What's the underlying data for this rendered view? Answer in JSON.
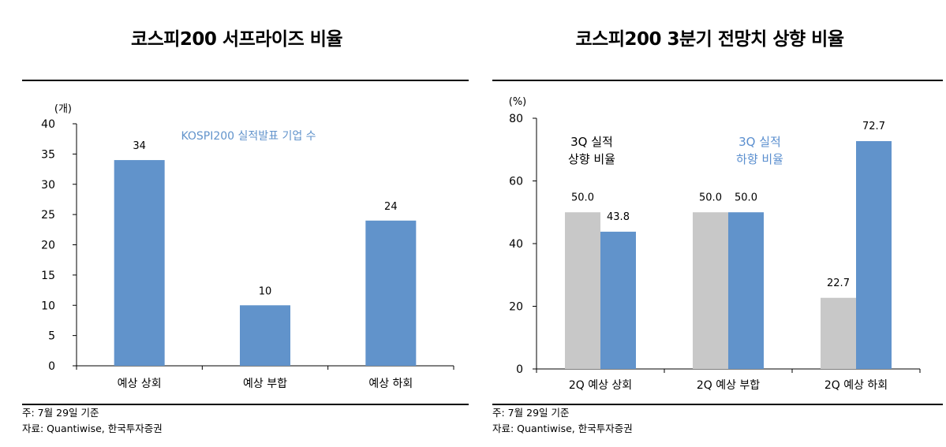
{
  "charts": [
    {
      "title": "코스피200 서프라이즈 비율",
      "footnote": "주: 7월 29일 기준",
      "source": "자료: Quantiwise, 한국투자증권",
      "chart_data": {
        "type": "bar",
        "title": "코스피200 서프라이즈 비율",
        "ylabel": "(개)",
        "xlabel": "",
        "ylim": [
          0,
          40
        ],
        "yticks": [
          0,
          5,
          10,
          15,
          20,
          25,
          30,
          35,
          40
        ],
        "categories": [
          "예상 상회",
          "예상 부합",
          "예상 하회"
        ],
        "series": [
          {
            "name": "KOSPI200 실적발표 기업 수",
            "values": [
              34,
              10,
              24
            ],
            "color": "#6193cb"
          }
        ],
        "legend_text": "KOSPI200 실적발표 기업 수",
        "legend_placement": "inside-top",
        "grid": false
      }
    },
    {
      "title": "코스피200 3분기 전망치 상향 비율",
      "footnote": "주: 7월 29일 기준",
      "source": "자료: Quantiwise, 한국투자증권",
      "chart_data": {
        "type": "bar",
        "title": "코스피200 3분기 전망치 상향 비율",
        "ylabel": "(%)",
        "xlabel": "",
        "ylim": [
          0,
          80
        ],
        "yticks": [
          0,
          20,
          40,
          60,
          80
        ],
        "categories": [
          "2Q 예상 상회",
          "2Q 예상 부합",
          "2Q 예상 하회"
        ],
        "series": [
          {
            "name": "3Q 실적 상향 비율",
            "label_lines": [
              "3Q 실적",
              "상향 비율"
            ],
            "values": [
              50.0,
              50.0,
              22.7
            ],
            "value_labels": [
              "50.0",
              "50.0",
              "22.7"
            ],
            "color": "#c8c8c8",
            "label_color": "#000000"
          },
          {
            "name": "3Q 실적 하향 비율",
            "label_lines": [
              "3Q 실적",
              "하향 비율"
            ],
            "values": [
              43.8,
              50.0,
              72.7
            ],
            "value_labels": [
              "43.8",
              "50.0",
              "72.7"
            ],
            "color": "#6193cb",
            "label_color": "#5b8fcf"
          }
        ],
        "legend_placement": "inside-top",
        "grid": false
      }
    }
  ]
}
